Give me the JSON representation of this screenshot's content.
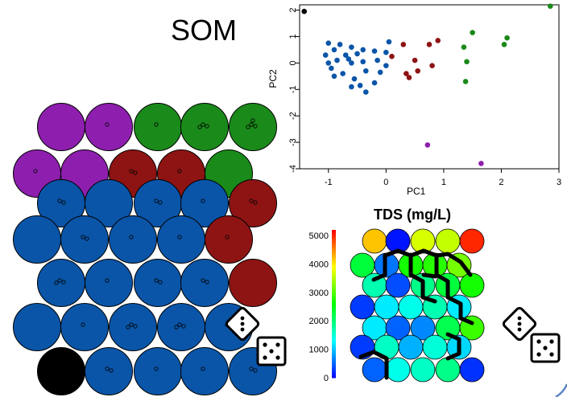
{
  "title": "SOM",
  "colors": {
    "purple": "#8e1fae",
    "green": "#1a8a1a",
    "red": "#8e1414",
    "blue": "#0a55a8",
    "black": "#000000"
  },
  "som_map": {
    "rows": [
      [
        "purple",
        "purple",
        "green",
        "green",
        "green"
      ],
      [
        "purple",
        "purple",
        "red",
        "red",
        "green"
      ],
      [
        "blue",
        "blue",
        "blue",
        "blue",
        "red"
      ],
      [
        "blue",
        "blue",
        "blue",
        "blue",
        "red"
      ],
      [
        "blue",
        "blue",
        "blue",
        "blue",
        "red"
      ],
      [
        "blue",
        "blue",
        "blue",
        "blue",
        "blue"
      ],
      [
        "black",
        "blue",
        "blue",
        "blue",
        "blue"
      ]
    ],
    "point_counts": [
      [
        0,
        1,
        1,
        3,
        4
      ],
      [
        1,
        0,
        2,
        1,
        0
      ],
      [
        2,
        0,
        2,
        1,
        2
      ],
      [
        0,
        2,
        1,
        1,
        1
      ],
      [
        3,
        1,
        2,
        2,
        0
      ],
      [
        0,
        1,
        3,
        3,
        2
      ],
      [
        0,
        2,
        1,
        1,
        2
      ]
    ]
  },
  "chart_data": [
    {
      "type": "scatter",
      "xlabel": "PC1",
      "ylabel": "PC2",
      "xlim": [
        -1.5,
        3
      ],
      "ylim": [
        -4,
        2.2
      ],
      "xticks": [
        -1,
        0,
        1,
        2,
        3
      ],
      "yticks": [
        -4,
        -3,
        -2,
        -1,
        0,
        1,
        2
      ],
      "series": [
        {
          "color": "blue",
          "points": [
            [
              -1.0,
              0.75
            ],
            [
              -0.8,
              0.7
            ],
            [
              -0.6,
              0.6
            ],
            [
              -0.4,
              0.5
            ],
            [
              -0.9,
              0.5
            ],
            [
              -0.7,
              0.3
            ],
            [
              -0.5,
              0.35
            ],
            [
              -0.2,
              0.45
            ],
            [
              0.0,
              0.4
            ],
            [
              -1.05,
              0.3
            ],
            [
              -0.85,
              0.1
            ],
            [
              -0.6,
              0.0
            ],
            [
              -0.4,
              0.05
            ],
            [
              -0.15,
              0.1
            ],
            [
              -0.95,
              -0.2
            ],
            [
              -0.75,
              -0.4
            ],
            [
              -0.55,
              -0.6
            ],
            [
              -0.35,
              -0.3
            ],
            [
              -0.1,
              -0.35
            ],
            [
              -0.9,
              -0.5
            ],
            [
              -0.6,
              -0.9
            ],
            [
              -0.35,
              -1.1
            ],
            [
              0.0,
              -0.1
            ],
            [
              -0.2,
              -0.75
            ],
            [
              0.05,
              0.8
            ],
            [
              -0.65,
              0.15
            ],
            [
              -1.0,
              0.0
            ],
            [
              -0.45,
              -0.85
            ]
          ]
        },
        {
          "color": "red",
          "points": [
            [
              0.1,
              0.25
            ],
            [
              0.3,
              0.7
            ],
            [
              0.5,
              0.1
            ],
            [
              0.75,
              0.7
            ],
            [
              0.9,
              0.85
            ],
            [
              0.35,
              -0.4
            ],
            [
              0.55,
              -0.3
            ],
            [
              0.8,
              -0.1
            ],
            [
              0.4,
              -0.55
            ]
          ]
        },
        {
          "color": "green",
          "points": [
            [
              1.5,
              1.15
            ],
            [
              1.35,
              0.6
            ],
            [
              1.4,
              0.05
            ],
            [
              1.38,
              -0.7
            ],
            [
              2.05,
              0.7
            ],
            [
              2.1,
              0.95
            ],
            [
              2.85,
              2.15
            ]
          ]
        },
        {
          "color": "purple",
          "points": [
            [
              0.72,
              -3.1
            ],
            [
              1.65,
              -3.8
            ]
          ]
        },
        {
          "color": "black",
          "points": [
            [
              -1.42,
              1.95
            ]
          ]
        }
      ]
    },
    {
      "type": "heatmap",
      "title": "TDS (mg/L)",
      "colorbar_ticks": [
        0,
        1000,
        2000,
        3000,
        4000,
        5000
      ],
      "colorbar_range": [
        0,
        5200
      ],
      "rows": [
        [
          4200,
          100,
          3700,
          3600,
          5000
        ],
        [
          2300,
          600,
          2700,
          2800,
          3200
        ],
        [
          1700,
          400,
          1900,
          2300,
          2700
        ],
        [
          300,
          1200,
          1400,
          1700,
          1200
        ],
        [
          1200,
          500,
          700,
          2200,
          2900
        ],
        [
          300,
          1600,
          900,
          1500,
          1100
        ],
        [
          500,
          1400,
          1600,
          1900,
          250
        ]
      ]
    }
  ]
}
